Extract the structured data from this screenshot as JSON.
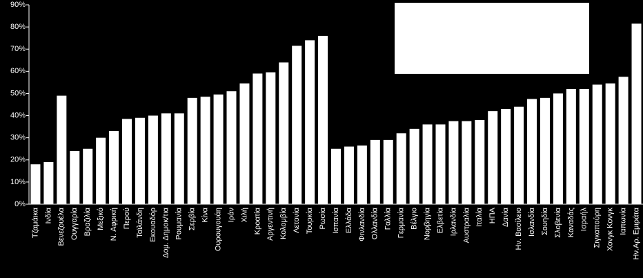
{
  "chart_data": {
    "type": "bar",
    "color": "#ffffff",
    "categories": [
      "Τζαμάικα",
      "Ινδία",
      "Βενεζουέλα",
      "Ουγγαρία",
      "Βραζιλία",
      "Μεξικό",
      "Ν. Αφρική",
      "Περού",
      "Ταϊλάνδη",
      "Εκουαδόρ",
      "Δομ. Δημοκ/τια",
      "Ρουμανία",
      "Σερβία",
      "Κίνα",
      "Ουρουγουάη",
      "Ιράν",
      "Χιλή",
      "Κροατία",
      "Αργεντινή",
      "Κολομβία",
      "Λετονία",
      "Τουρκία",
      "Ρωσία",
      "Ισπανία",
      "Ελλάδα",
      "Φινλανδία",
      "Ολλανδία",
      "Γαλλία",
      "Γερμανία",
      "Βέλγιο",
      "Νορβηγία",
      "Ελβετία",
      "Ιρλανδία",
      "Αυστραλία",
      "Ιταλία",
      "ΗΠΑ",
      "Δανία",
      "Ην. Βασίλειο",
      "Ισλανδία",
      "Σουηδία",
      "Σλοβενία",
      "Καναδάς",
      "Ισραήλ",
      "Σιγκαπούρη",
      "Χονγκ Κονγκ",
      "Ιαπωνία",
      "Ην.Αρ. Εμιράτα"
    ],
    "values": [
      18,
      19,
      49,
      24,
      25,
      30,
      33,
      38.5,
      39,
      40,
      41,
      41,
      48,
      48.5,
      49.5,
      51,
      54.5,
      59,
      59.5,
      64,
      71.5,
      74,
      76,
      25,
      26,
      26.5,
      29,
      29,
      32,
      34,
      36,
      36,
      37.5,
      37.5,
      38,
      42,
      43,
      44,
      47.5,
      48,
      50,
      52,
      52,
      54,
      54.5,
      57.5,
      81.5
    ],
    "ylim": [
      0,
      90
    ],
    "yticks": [
      {
        "value": 0,
        "label": "0%"
      },
      {
        "value": 10,
        "label": "10%"
      },
      {
        "value": 20,
        "label": "20%"
      },
      {
        "value": 30,
        "label": "30%"
      },
      {
        "value": 40,
        "label": "40%"
      },
      {
        "value": 50,
        "label": "50%"
      },
      {
        "value": 60,
        "label": "60%"
      },
      {
        "value": 70,
        "label": "70%"
      },
      {
        "value": 80,
        "label": "80%"
      },
      {
        "value": 90,
        "label": "90%"
      }
    ],
    "grid": false
  }
}
